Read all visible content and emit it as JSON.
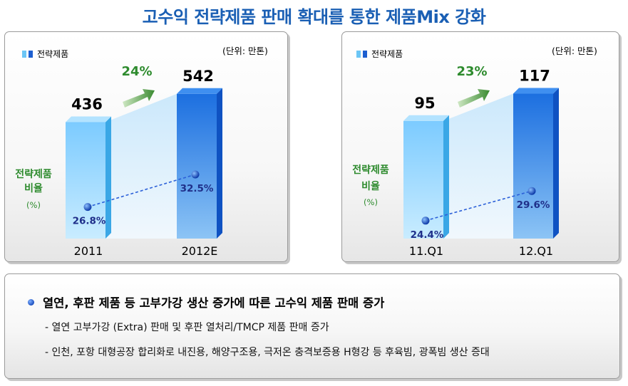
{
  "page": {
    "title": "고수익 전략제품 판매 확대를 통한 제품Mix 강화"
  },
  "charts_common": {
    "legend_label": "전략제품",
    "unit_label": "(단위: 만톤)",
    "ratio_label_line1": "전략제품",
    "ratio_label_line2": "비율",
    "ratio_label_line3": "(%)"
  },
  "chart_data": [
    {
      "type": "bar",
      "categories": [
        "2011",
        "2012E"
      ],
      "values": [
        436,
        542
      ],
      "value_labels": [
        "436",
        "542"
      ],
      "growth_label": "24%",
      "ratio_series": {
        "values": [
          26.8,
          32.5
        ],
        "labels": [
          "26.8%",
          "32.5%"
        ]
      },
      "ylabel": "",
      "ylim": [
        0,
        640
      ]
    },
    {
      "type": "bar",
      "categories": [
        "11.Q1",
        "12.Q1"
      ],
      "values": [
        95,
        117
      ],
      "value_labels": [
        "95",
        "117"
      ],
      "growth_label": "23%",
      "ratio_series": {
        "values": [
          24.4,
          29.6
        ],
        "labels": [
          "24.4%",
          "29.6%"
        ]
      },
      "ylabel": "",
      "ylim": [
        0,
        138
      ]
    }
  ],
  "summary": {
    "headline": "열연, 후판 제품 등 고부가강 생산 증가에 따른 고수익 제품 판매 증가",
    "items": [
      "- 열연 고부가강 (Extra) 판매 및 후판 열처리/TMCP 제품 판매 증가",
      "- 인천, 포항 대형공장 합리화로 내진용, 해양구조용, 극저온 충격보증용 H형강 등 후육빔, 광폭빔 생산 증대"
    ]
  },
  "colors": {
    "title": "#1a5fb4",
    "growth_text": "#2e8b2e",
    "ratio_text": "#2e8b2e",
    "ratio_value": "#1f2f8a",
    "bar_light": "#8fd3ff",
    "bar_dark": "#1d6fdc"
  }
}
